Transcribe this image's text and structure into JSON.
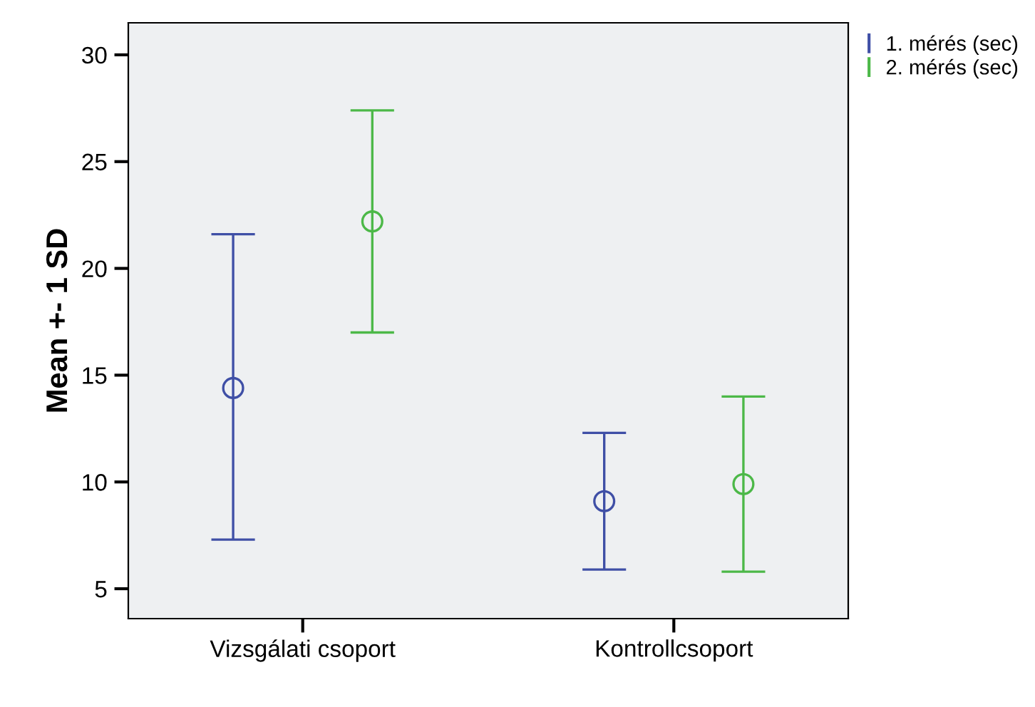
{
  "chart_data": {
    "type": "scatter",
    "ylabel": "Mean +- 1 SD",
    "categories": [
      "Vizsgálati csoport",
      "Kontrollcsoport"
    ],
    "series": [
      {
        "name": "1. mérés (sec)",
        "color": "#3f4fa6",
        "values": [
          14.4,
          9.1
        ],
        "errors": [
          [
            7.3,
            21.6
          ],
          [
            5.9,
            12.3
          ]
        ]
      },
      {
        "name": "2. mérés (sec)",
        "color": "#4cb848",
        "values": [
          22.2,
          9.9
        ],
        "errors": [
          [
            17.0,
            27.4
          ],
          [
            5.8,
            14.0
          ]
        ]
      }
    ],
    "ylim": [
      3.6,
      31.5
    ],
    "yticks": [
      5,
      10,
      15,
      20,
      25,
      30
    ],
    "marker": "circle",
    "legend": "top right",
    "grid": false
  }
}
